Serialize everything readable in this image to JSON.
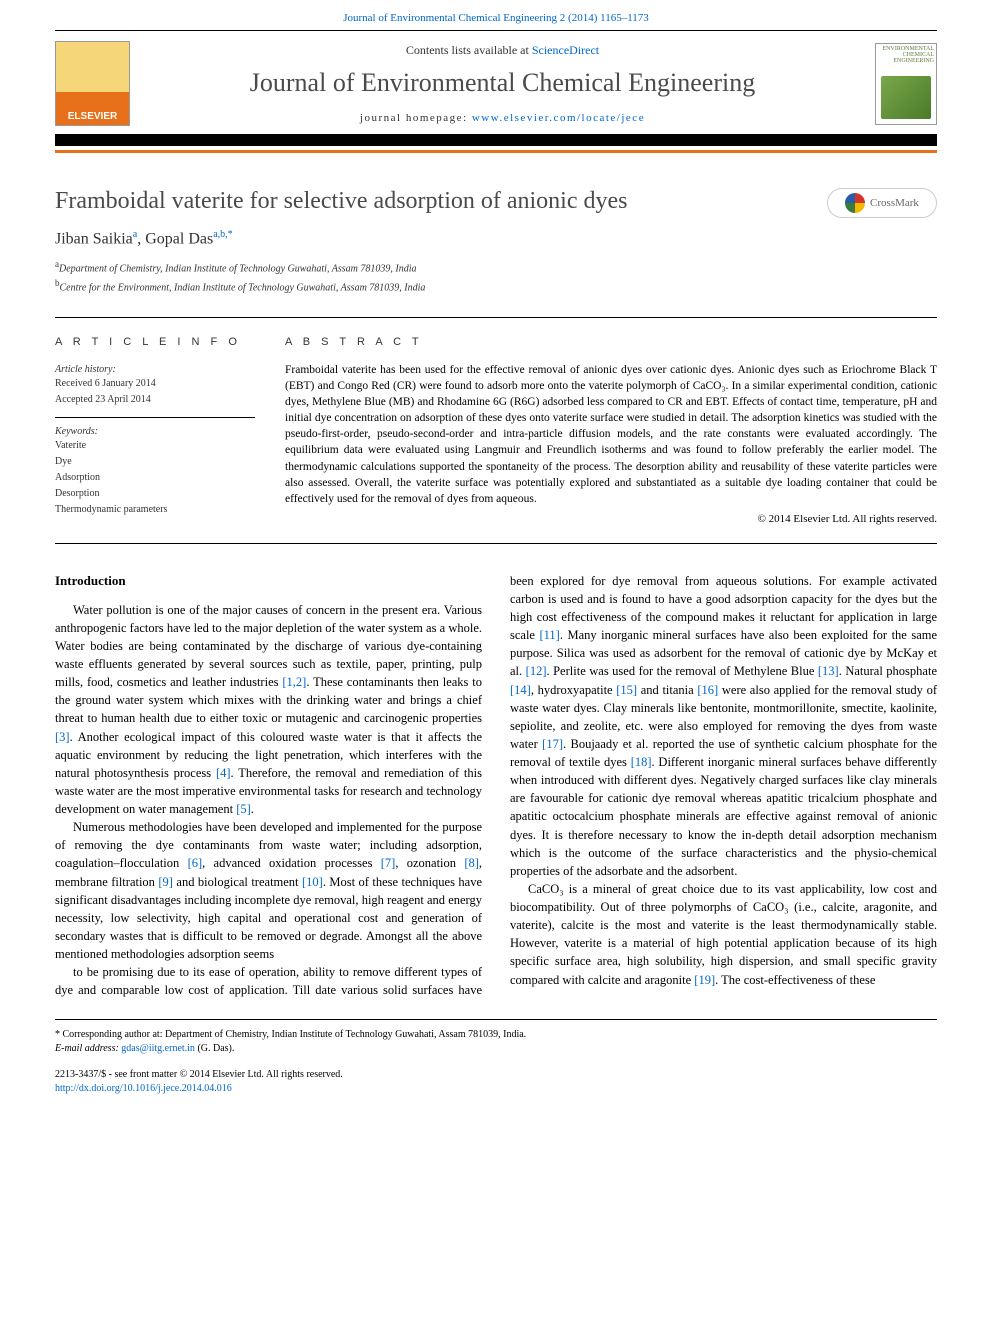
{
  "header": {
    "top_link_text": "Journal of Environmental Chemical Engineering 2 (2014) 1165–1173",
    "contents_prefix": "Contents lists available at ",
    "contents_link": "ScienceDirect",
    "journal_name": "Journal of Environmental Chemical Engineering",
    "homepage_prefix": "journal homepage: ",
    "homepage_url": "www.elsevier.com/locate/jece",
    "cover_text": "ENVIRONMENTAL CHEMICAL ENGINEERING"
  },
  "crossmark": {
    "label": "CrossMark"
  },
  "article": {
    "title": "Framboidal vaterite for selective adsorption of anionic dyes",
    "author1_name": "Jiban Saikia",
    "author1_sup": "a",
    "author_sep": ",   ",
    "author2_name": "Gopal Das",
    "author2_sup": "a,b,*",
    "aff_a_sup": "a",
    "aff_a": "Department of Chemistry, Indian Institute of Technology Guwahati, Assam 781039, India",
    "aff_b_sup": "b",
    "aff_b": "Centre for the Environment, Indian Institute of Technology Guwahati, Assam 781039, India"
  },
  "info": {
    "heading": "A R T I C L E   I N F O",
    "history_label": "Article history:",
    "received": "Received 6 January 2014",
    "accepted": "Accepted 23 April 2014",
    "keywords_label": "Keywords:",
    "kw1": "Vaterite",
    "kw2": "Dye",
    "kw3": "Adsorption",
    "kw4": "Desorption",
    "kw5": "Thermodynamic parameters"
  },
  "abstract": {
    "heading": "A B S T R A C T",
    "text": "Framboidal vaterite has been used for the effective removal of anionic dyes over cationic dyes. Anionic dyes such as Eriochrome Black T (EBT) and Congo Red (CR) were found to adsorb more onto the vaterite polymorph of CaCO₃. In a similar experimental condition, cationic dyes, Methylene Blue (MB) and Rhodamine 6G (R6G) adsorbed less compared to CR and EBT. Effects of contact time, temperature, pH and initial dye concentration on adsorption of these dyes onto vaterite surface were studied in detail. The adsorption kinetics was studied with the pseudo-first-order, pseudo-second-order and intra-particle diffusion models, and the rate constants were evaluated accordingly. The equilibrium data were evaluated using Langmuir and Freundlich isotherms and was found to follow preferably the earlier model. The thermodynamic calculations supported the spontaneity of the process. The desorption ability and reusability of these vaterite particles were also assessed. Overall, the vaterite surface was potentially explored and substantiated as a suitable dye loading container that could be effectively used for the removal of dyes from aqueous.",
    "copyright": "© 2014 Elsevier Ltd. All rights reserved."
  },
  "body": {
    "intro_heading": "Introduction",
    "p1_a": "Water pollution is one of the major causes of concern in the present era. Various anthropogenic factors have led to the major depletion of the water system as a whole. Water bodies are being contaminated by the discharge of various dye-containing waste effluents generated by several sources such as textile, paper, printing, pulp mills, food, cosmetics and leather industries ",
    "p1_ref1": "[1,2]",
    "p1_b": ". These contaminants then leaks to the ground water system which mixes with the drinking water and brings a chief threat to human health due to either toxic or mutagenic and carcinogenic properties ",
    "p1_ref2": "[3]",
    "p1_c": ". Another ecological impact of this coloured waste water is that it affects the aquatic environment by reducing the light penetration, which interferes with the natural photosynthesis process ",
    "p1_ref3": "[4]",
    "p1_d": ". Therefore, the removal and remediation of this waste water are the most imperative environmental tasks for research and technology development on water management ",
    "p1_ref4": "[5]",
    "p1_e": ".",
    "p2_a": "Numerous methodologies have been developed and implemented for the purpose of removing the dye contaminants from waste water; including adsorption, coagulation–flocculation ",
    "p2_ref1": "[6]",
    "p2_b": ", advanced oxidation processes ",
    "p2_ref2": "[7]",
    "p2_c": ", ozonation ",
    "p2_ref3": "[8]",
    "p2_d": ", membrane filtration ",
    "p2_ref4": "[9]",
    "p2_e": " and biological treatment ",
    "p2_ref5": "[10]",
    "p2_f": ". Most of these techniques have significant disadvantages including incomplete dye removal, high reagent and energy necessity, low selectivity, high capital and operational cost and generation of secondary wastes that is difficult to be removed or degrade. Amongst all the above mentioned methodologies adsorption seems",
    "p3_a": "to be promising due to its ease of operation, ability to remove different types of dye and comparable low cost of application. Till date various solid surfaces have been explored for dye removal from aqueous solutions. For example activated carbon is used and is found to have a good adsorption capacity for the dyes but the high cost effectiveness of the compound makes it reluctant for application in large scale ",
    "p3_ref1": "[11]",
    "p3_b": ". Many inorganic mineral surfaces have also been exploited for the same purpose. Silica was used as adsorbent for the removal of cationic dye by McKay et al. ",
    "p3_ref2": "[12]",
    "p3_c": ". Perlite was used for the removal of Methylene Blue ",
    "p3_ref3": "[13]",
    "p3_d": ". Natural phosphate ",
    "p3_ref4": "[14]",
    "p3_e": ", hydroxyapatite ",
    "p3_ref5": "[15]",
    "p3_f": " and titania ",
    "p3_ref6": "[16]",
    "p3_g": " were also applied for the removal study of waste water dyes. Clay minerals like bentonite, montmorillonite, smectite, kaolinite, sepiolite, and zeolite, etc. were also employed for removing the dyes from waste water ",
    "p3_ref7": "[17]",
    "p3_h": ". Boujaady et al. reported the use of synthetic calcium phosphate for the removal of textile dyes ",
    "p3_ref8": "[18]",
    "p3_i": ". Different inorganic mineral surfaces behave differently when introduced with different dyes. Negatively charged surfaces like clay minerals are favourable for cationic dye removal whereas apatitic tricalcium phosphate and apatitic octocalcium phosphate minerals are effective against removal of anionic dyes. It is therefore necessary to know the in-depth detail adsorption mechanism which is the outcome of the surface characteristics and the physio-chemical properties of the adsorbate and the adsorbent.",
    "p4_a": "CaCO₃ is a mineral of great choice due to its vast applicability, low cost and biocompatibility. Out of three polymorphs of CaCO₃ (i.e., calcite, aragonite, and vaterite), calcite is the most and vaterite is the least thermodynamically stable. However, vaterite is a material of high potential application because of its high specific surface area, high solubility, high dispersion, and small specific gravity compared with calcite and aragonite ",
    "p4_ref1": "[19]",
    "p4_b": ". The cost-effectiveness of these"
  },
  "footer": {
    "corr_marker": "*",
    "corr_text": " Corresponding author at: Department of Chemistry, Indian Institute of Technology Guwahati, Assam 781039, India.",
    "email_label": "E-mail address: ",
    "email": "gdas@iitg.ernet.in",
    "email_suffix": " (G. Das).",
    "issn_line": "2213-3437/$ - see front matter © 2014 Elsevier Ltd. All rights reserved.",
    "doi": "http://dx.doi.org/10.1016/j.jece.2014.04.016"
  },
  "colors": {
    "link": "#0066cc",
    "orange": "#e8701a",
    "heading_gray": "#4a4a4a"
  }
}
